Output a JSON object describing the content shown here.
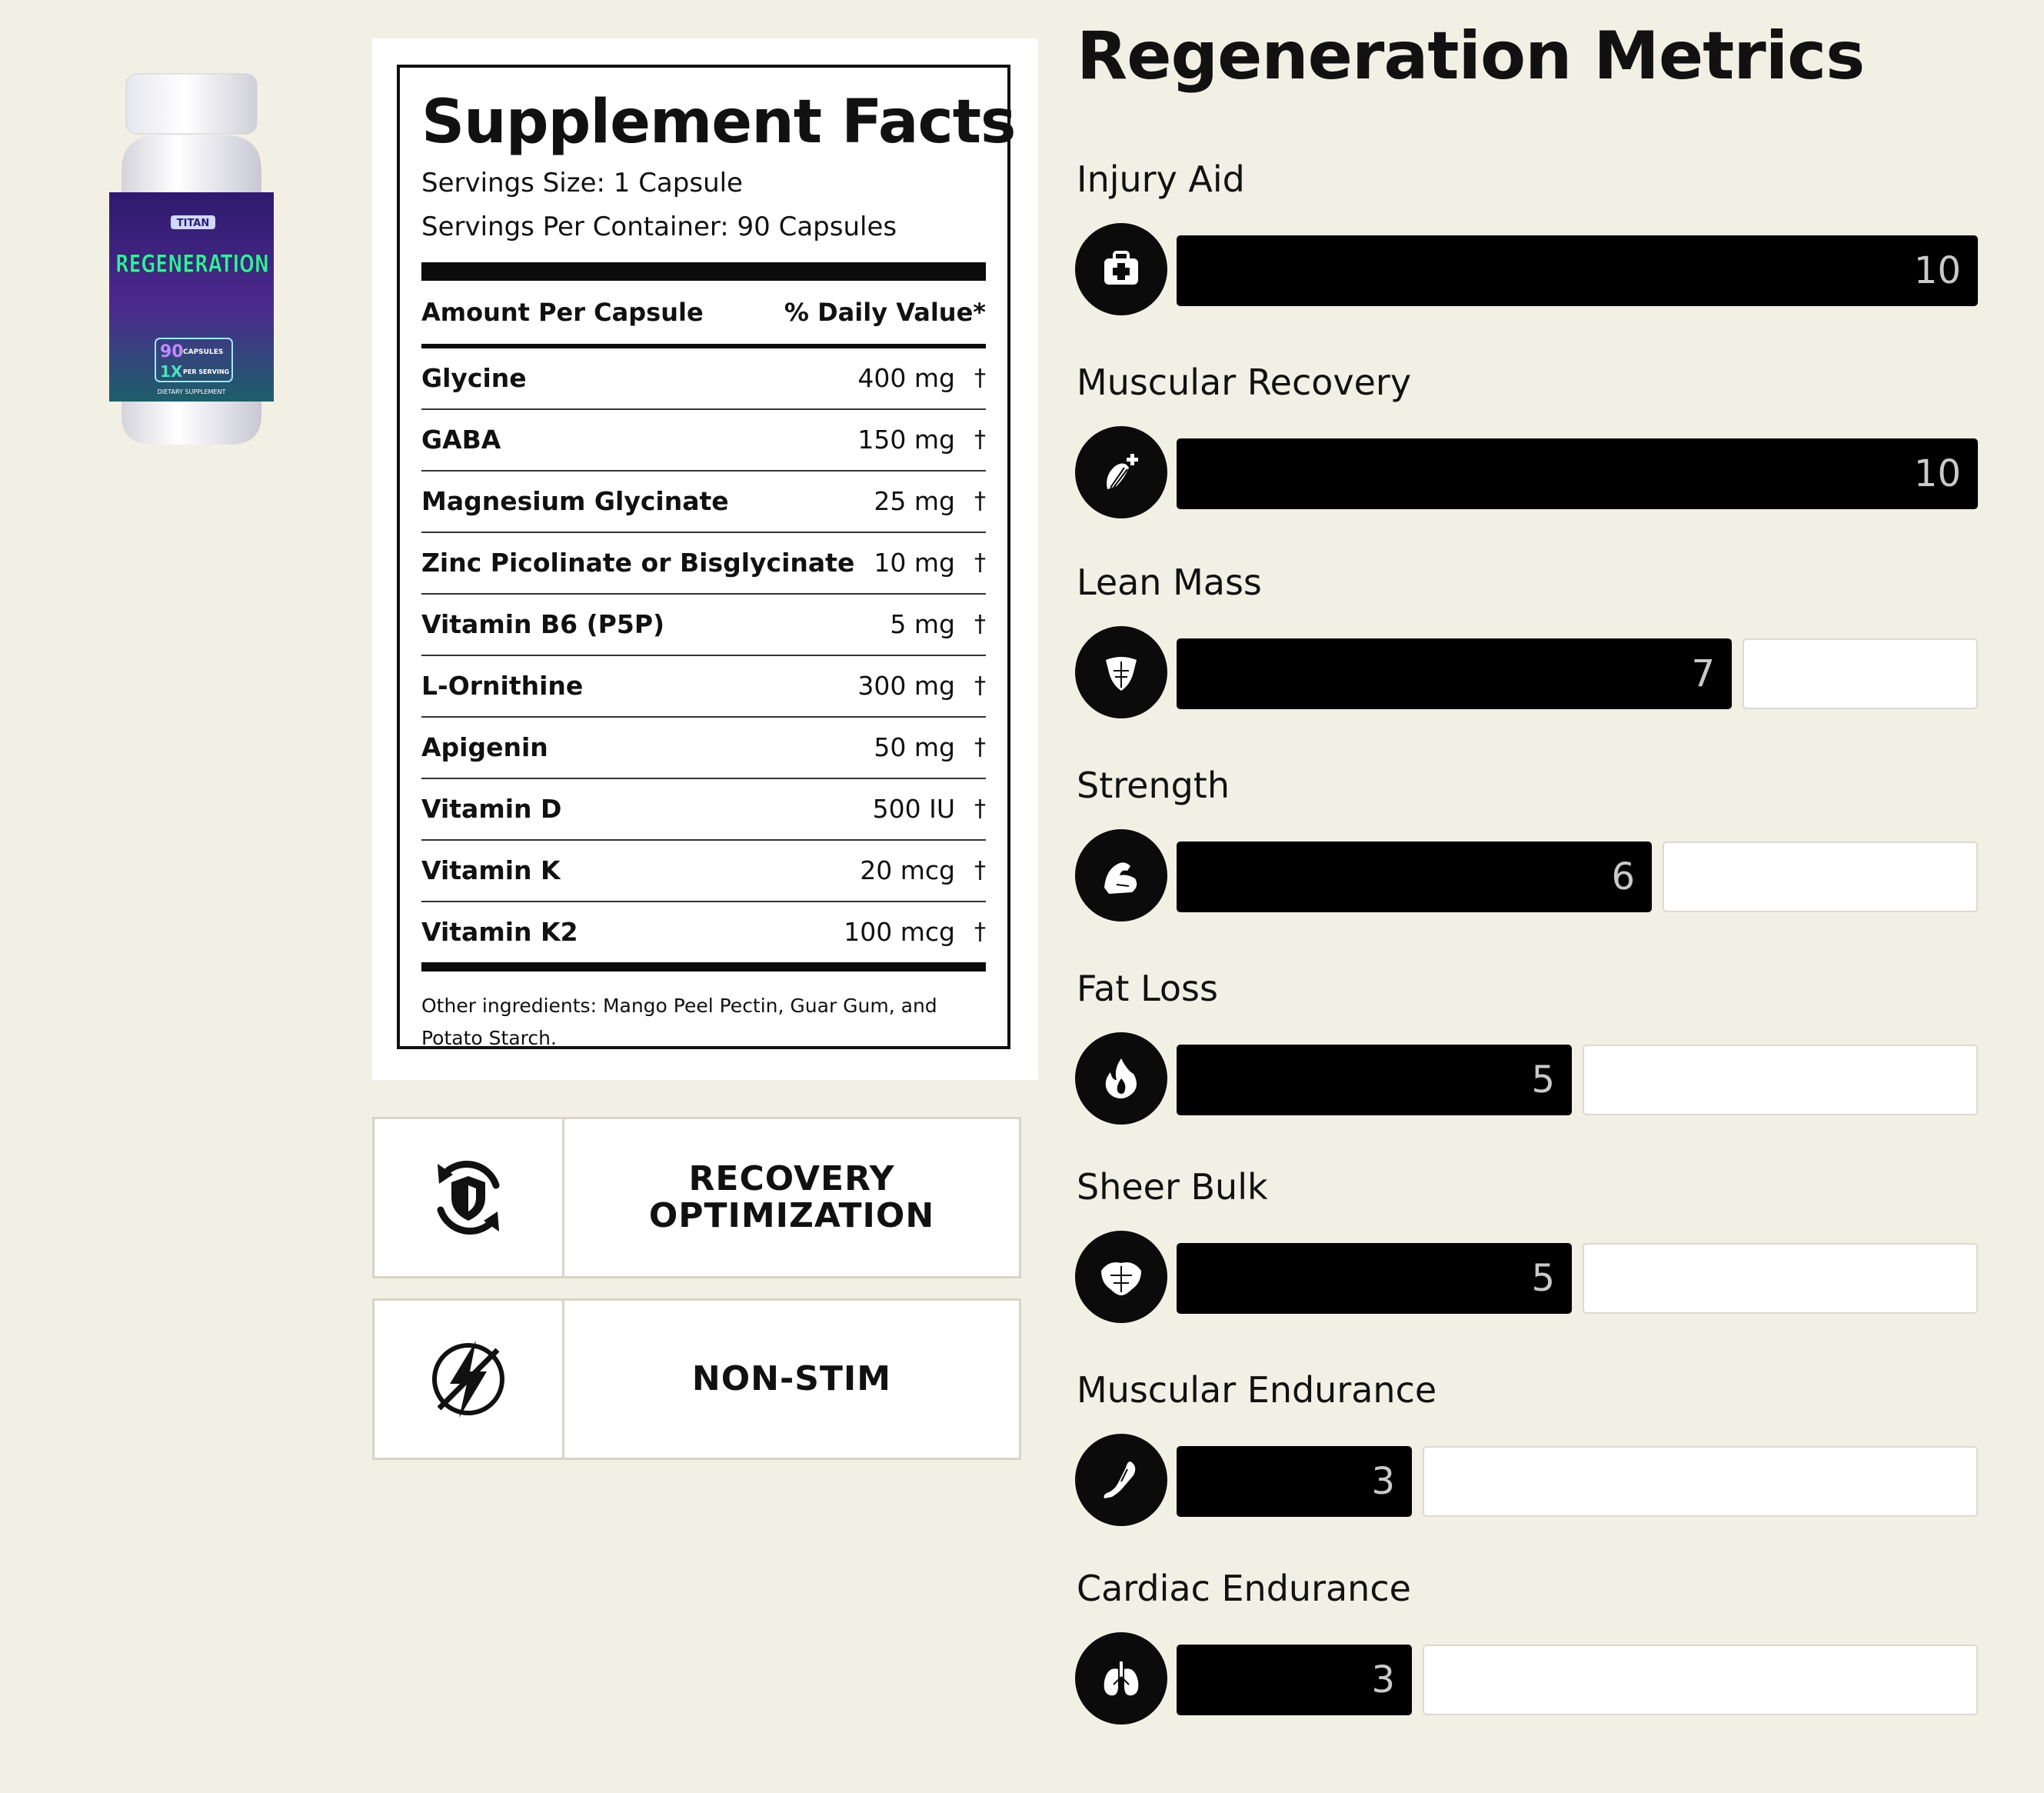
{
  "product": {
    "brand": "TITAN",
    "name": "REGENERATION",
    "capsules_count": "90",
    "capsules_label": "CAPSULES",
    "per_serving_count": "1X",
    "per_serving_label": "PER SERVING",
    "footer": "DIETARY SUPPLEMENT"
  },
  "facts": {
    "title": "Supplement Facts",
    "serving_size": "Servings Size: 1 Capsule",
    "servings_per_container": "Servings Per Container: 90 Capsules",
    "amount_header": "Amount Per Capsule",
    "dv_header": "% Daily Value*",
    "ingredients": [
      {
        "name": "Glycine",
        "amount": "400 mg",
        "dv": "†"
      },
      {
        "name": "GABA",
        "amount": "150 mg",
        "dv": "†"
      },
      {
        "name": "Magnesium Glycinate",
        "amount": "25 mg",
        "dv": "†"
      },
      {
        "name": "Zinc Picolinate or Bisglycinate",
        "amount": "10 mg",
        "dv": "†"
      },
      {
        "name": "Vitamin B6 (P5P)",
        "amount": "5 mg",
        "dv": "†"
      },
      {
        "name": "L-Ornithine",
        "amount": "300 mg",
        "dv": "†"
      },
      {
        "name": "Apigenin",
        "amount": "50 mg",
        "dv": "†"
      },
      {
        "name": "Vitamin D",
        "amount": "500 IU",
        "dv": "†"
      },
      {
        "name": "Vitamin K",
        "amount": "20 mcg",
        "dv": "†"
      },
      {
        "name": "Vitamin K2",
        "amount": "100 mcg",
        "dv": "†"
      }
    ],
    "other_ingredients": "Other ingredients: Mango Peel Pectin, Guar Gum, and Potato Starch."
  },
  "badges": [
    {
      "icon": "shield-refresh-icon",
      "label": "RECOVERY\nOPTIMIZATION"
    },
    {
      "icon": "no-lightning-icon",
      "label": "NON-STIM"
    }
  ],
  "metrics": {
    "title": "Regeneration Metrics",
    "max": 10,
    "items": [
      {
        "label": "Injury Aid",
        "value": 10,
        "icon": "first-aid-kit-icon"
      },
      {
        "label": "Muscular Recovery",
        "value": 10,
        "icon": "muscle-plus-icon"
      },
      {
        "label": "Lean Mass",
        "value": 7,
        "icon": "torso-icon"
      },
      {
        "label": "Strength",
        "value": 6,
        "icon": "flexed-arm-icon"
      },
      {
        "label": "Fat Loss",
        "value": 5,
        "icon": "flame-icon"
      },
      {
        "label": "Sheer Bulk",
        "value": 5,
        "icon": "bulky-torso-icon"
      },
      {
        "label": "Muscular Endurance",
        "value": 3,
        "icon": "leg-icon"
      },
      {
        "label": "Cardiac Endurance",
        "value": 3,
        "icon": "lungs-icon"
      }
    ]
  },
  "colors": {
    "background": "#f2f0e4",
    "bar_fill": "#000000",
    "bar_empty": "#ffffff",
    "bar_value_text": "#c9c9c9"
  }
}
